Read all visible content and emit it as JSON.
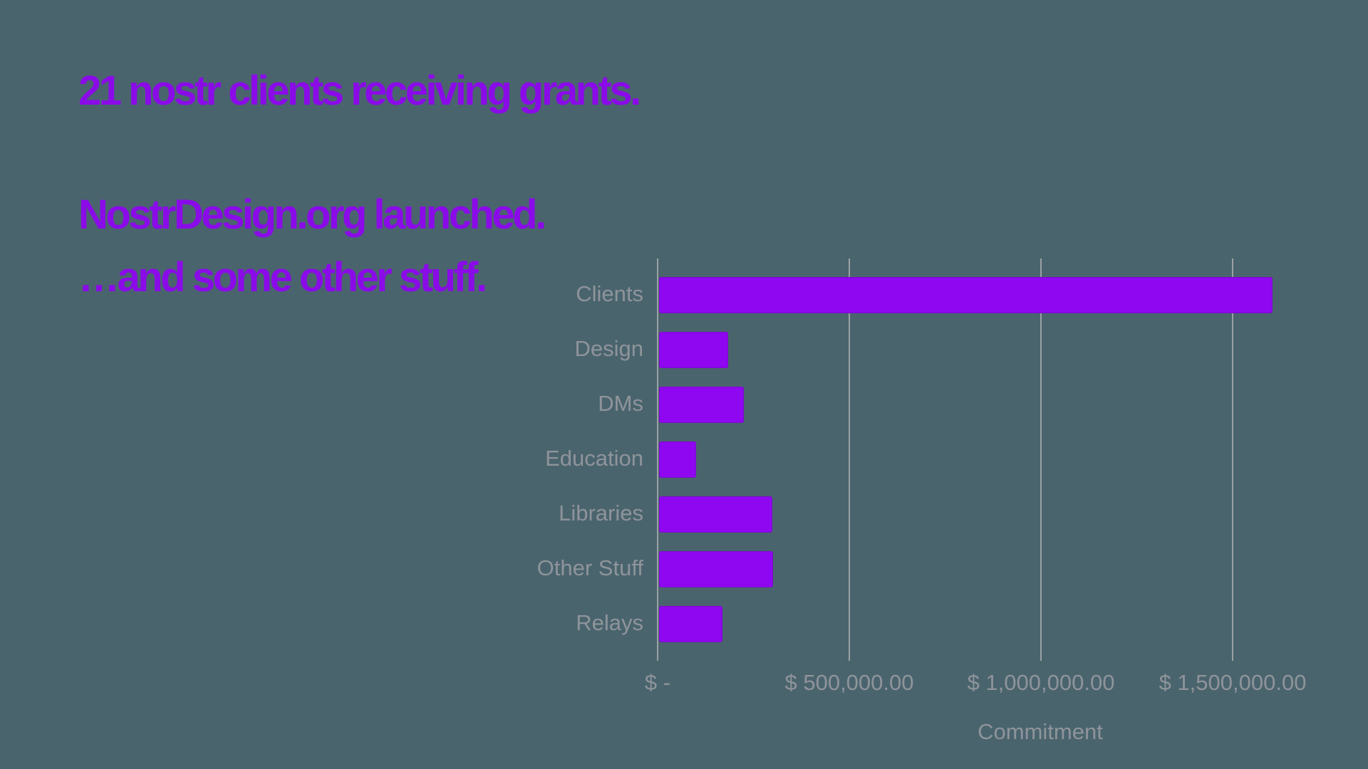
{
  "slide": {
    "background_color": "#4A646E",
    "accent_color": "#8A0BE8"
  },
  "titles": {
    "grants": "21 nostr clients receiving grants.",
    "launched": "NostrDesign.org launched.",
    "other": "…and some other stuff."
  },
  "chart_data": {
    "type": "bar",
    "orientation": "horizontal",
    "title": "",
    "xlabel": "Commitment",
    "ylabel": "",
    "categories": [
      "Clients",
      "Design",
      "DMs",
      "Education",
      "Libraries",
      "Other Stuff",
      "Relays"
    ],
    "values": [
      1600000,
      180000,
      222000,
      96000,
      295000,
      298000,
      165000
    ],
    "xlim": [
      0,
      1750000
    ],
    "xticks": [
      {
        "label": "$ -",
        "value": 0
      },
      {
        "label": "$ 500,000.00",
        "value": 500000
      },
      {
        "label": "$ 1,000,000.00",
        "value": 1000000
      },
      {
        "label": "$ 1,500,000.00",
        "value": 1500000
      }
    ],
    "grid": "vertical-gridlines-only",
    "legend": "none",
    "bar_color": "#8F06F0",
    "gridline_color": "#9BA1A4",
    "text_color": "#8E949A"
  }
}
